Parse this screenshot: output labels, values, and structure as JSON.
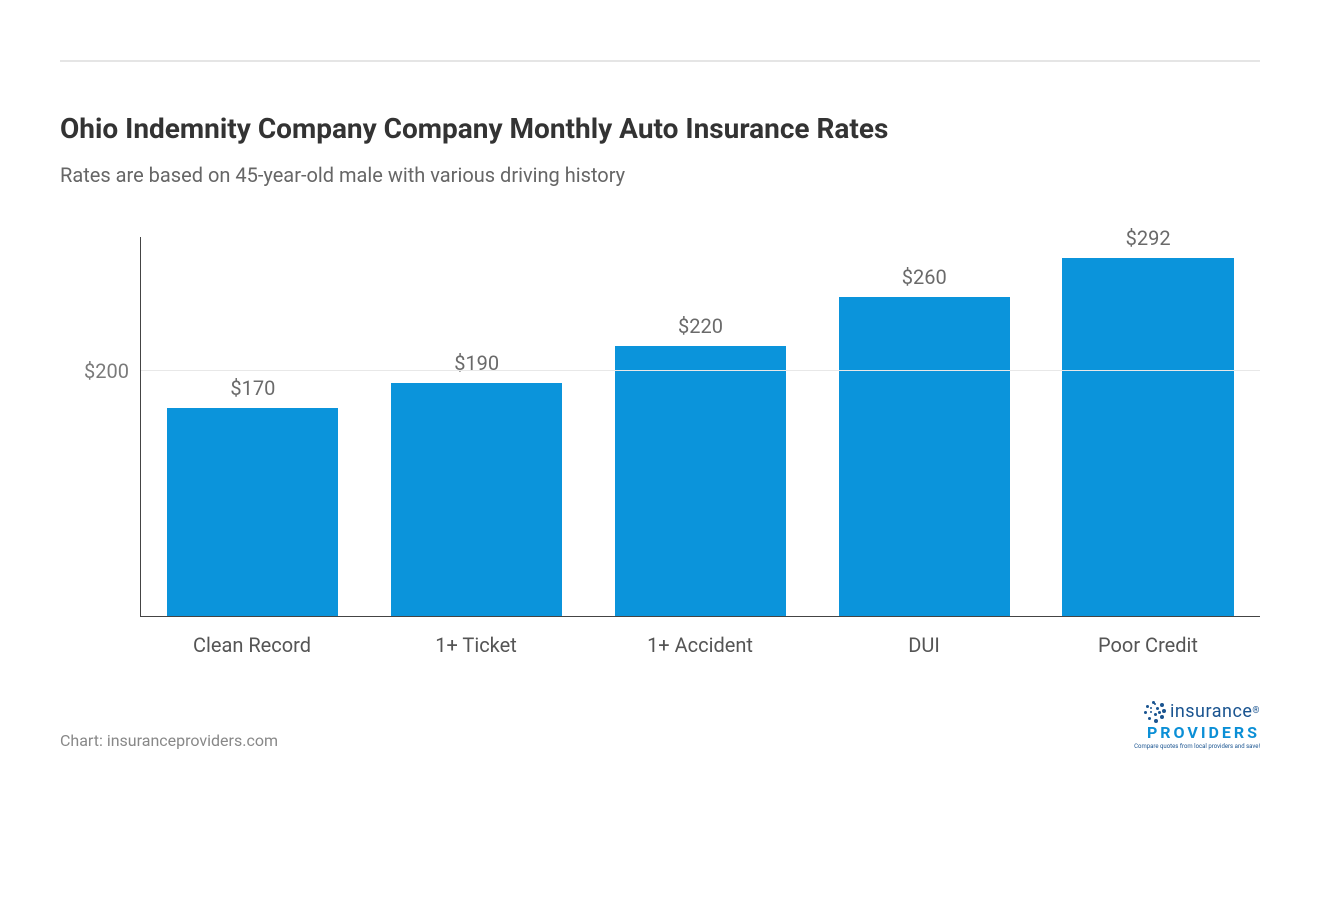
{
  "title": "Ohio Indemnity Company Company Monthly Auto Insurance Rates",
  "subtitle": "Rates are based on 45-year-old male with various driving history",
  "attribution": "Chart: insuranceproviders.com",
  "chart": {
    "type": "bar",
    "categories": [
      "Clean Record",
      "1+ Ticket",
      "1+ Accident",
      "DUI",
      "Poor Credit"
    ],
    "values": [
      170,
      190,
      220,
      260,
      292
    ],
    "value_labels": [
      "$170",
      "$190",
      "$220",
      "$260",
      "$292"
    ],
    "bar_color": "#0b94db",
    "y_tick_labels": [
      "$200"
    ],
    "y_tick_values": [
      200
    ],
    "ylim": [
      0,
      310
    ],
    "gridline_color": "#e8e8e8",
    "axis_color": "#444444",
    "background_color": "#ffffff",
    "title_color": "#333333",
    "title_fontsize": 28,
    "subtitle_color": "#666666",
    "subtitle_fontsize": 20,
    "label_color": "#555555",
    "label_fontsize": 20,
    "value_label_color": "#6a6a6a",
    "value_label_fontsize": 20
  },
  "logo": {
    "text1": "insurance",
    "text2": "PROVIDERS",
    "text3": "Compare quotes from local providers and save!",
    "text1_color": "#1a5490",
    "text2_color": "#0b8fd6",
    "dot_color": "#1a5490",
    "registered": "®"
  }
}
